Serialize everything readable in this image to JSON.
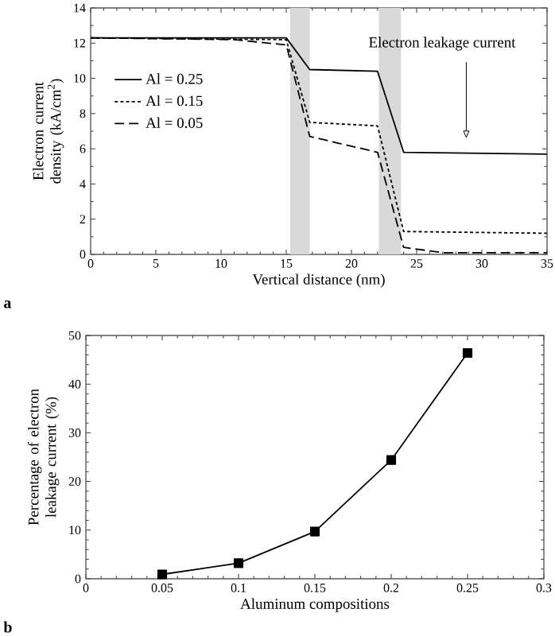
{
  "chart_data": [
    {
      "type": "line",
      "xlabel": "Vertical distance (nm)",
      "ylabel": "Electron current density (kA/cm$^{2}$)",
      "xlim": [
        0,
        35
      ],
      "ylim": [
        0,
        14
      ],
      "xticks": [
        0,
        5,
        10,
        15,
        20,
        25,
        30,
        35
      ],
      "yticks": [
        0,
        2,
        4,
        6,
        8,
        10,
        12,
        14
      ],
      "legend": "left",
      "bands": [
        {
          "axis": "x",
          "from": 15.3,
          "to": 16.8,
          "color": "#d9d9d9"
        },
        {
          "axis": "x",
          "from": 22.1,
          "to": 23.8,
          "color": "#d9d9d9"
        }
      ],
      "annotations": [
        "a",
        "Electron leakage current"
      ],
      "series": [
        {
          "name": "Al = 0.25",
          "color": "#000000",
          "line_style": "solid",
          "x": [
            0,
            15,
            16.8,
            22,
            24,
            35
          ],
          "values": [
            12.3,
            12.3,
            10.5,
            10.4,
            5.8,
            5.7
          ]
        },
        {
          "name": "Al = 0.15",
          "color": "#000000",
          "line_style": "dotted",
          "x": [
            0,
            15,
            16.8,
            22,
            24,
            35
          ],
          "values": [
            12.3,
            12.2,
            7.5,
            7.3,
            1.3,
            1.2
          ]
        },
        {
          "name": "Al = 0.05",
          "color": "#000000",
          "line_style": "dashed",
          "x": [
            0,
            11,
            15,
            16.8,
            22,
            24,
            25,
            27,
            35
          ],
          "values": [
            12.3,
            12.2,
            11.9,
            6.7,
            5.8,
            0.4,
            0.3,
            0.1,
            0.1
          ]
        }
      ]
    },
    {
      "type": "line",
      "xlabel": "Aluminum compositions",
      "ylabel": "Percentage of electron leakage current (%)",
      "xlim": [
        0,
        0.3
      ],
      "ylim": [
        0,
        50
      ],
      "xticks": [
        0,
        0.05,
        0.1,
        0.15,
        0.2,
        0.25,
        0.3
      ],
      "yticks": [
        0,
        10,
        20,
        30,
        40,
        50
      ],
      "marker": "square",
      "line_style": "solid",
      "annotations": [
        "b"
      ],
      "series": [
        {
          "color": "#000000",
          "x": [
            0.05,
            0.1,
            0.15,
            0.2,
            0.25
          ],
          "values": [
            0.9,
            3.2,
            9.7,
            24.4,
            46.4
          ]
        }
      ]
    }
  ]
}
